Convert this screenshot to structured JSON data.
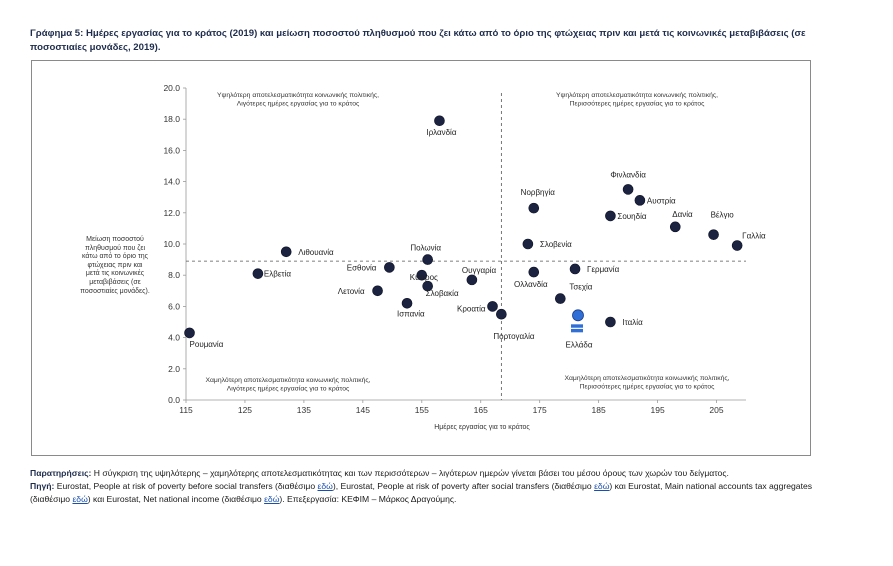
{
  "title": "Γράφημα 5: Ημέρες εργασίας για το κράτος (2019) και μείωση ποσοστού πληθυσμού που ζει κάτω από το όριο της φτώχειας πριν και μετά τις κοινωνικές μεταβιβάσεις (σε ποσοστιαίες μονάδες, 2019).",
  "chart_data": {
    "type": "scatter",
    "xlabel": "Ημέρες εργασίας για το κράτος",
    "ylabel": "Μείωση ποσοστού πληθυσμού που ζει κάτω από το όριο της φτώχειας πριν και μετά τις κοινωνικές μεταβιβάσεις (σε ποσοστιαίες μονάδες)",
    "xlim": [
      115,
      210
    ],
    "ylim": [
      0,
      20
    ],
    "x_ticks": [
      "115",
      "125",
      "135",
      "145",
      "155",
      "165",
      "175",
      "185",
      "195",
      "205"
    ],
    "y_ticks": [
      "0.0",
      "2.0",
      "4.0",
      "6.0",
      "8.0",
      "10.0",
      "12.0",
      "14.0",
      "16.0",
      "18.0",
      "20.0"
    ],
    "reference_lines": {
      "x_mean": 168.5,
      "y_mean": 8.9
    },
    "marker_color": "#1c2340",
    "highlight_color": "#2f6fd6",
    "points": [
      {
        "label": "Ρουμανία",
        "x": 115.6,
        "y": 4.3
      },
      {
        "label": "Ελβετία",
        "x": 127.2,
        "y": 8.1
      },
      {
        "label": "Λιθουανία",
        "x": 132.0,
        "y": 9.5
      },
      {
        "label": "Ιρλανδία",
        "x": 158.0,
        "y": 17.9
      },
      {
        "label": "Εσθονία",
        "x": 149.5,
        "y": 8.5
      },
      {
        "label": "Λετονία",
        "x": 147.5,
        "y": 7.0
      },
      {
        "label": "Πολωνία",
        "x": 156.0,
        "y": 9.0
      },
      {
        "label": "Κύπρος",
        "x": 155.0,
        "y": 8.0
      },
      {
        "label": "Σλοβακία",
        "x": 156.0,
        "y": 7.3
      },
      {
        "label": "Ισπανία",
        "x": 152.5,
        "y": 6.2
      },
      {
        "label": "Ουγγαρία",
        "x": 163.5,
        "y": 7.7
      },
      {
        "label": "Κροατία",
        "x": 167.0,
        "y": 6.0
      },
      {
        "label": "Πορτογαλία",
        "x": 168.5,
        "y": 5.5
      },
      {
        "label": "Νορβηγία",
        "x": 174.0,
        "y": 12.3
      },
      {
        "label": "Σλοβενία",
        "x": 173.0,
        "y": 10.0
      },
      {
        "label": "Ολλανδία",
        "x": 174.0,
        "y": 8.2
      },
      {
        "label": "Γερμανία",
        "x": 181.0,
        "y": 8.4
      },
      {
        "label": "Τσεχία",
        "x": 178.5,
        "y": 6.5
      },
      {
        "label": "Ιταλία",
        "x": 187.0,
        "y": 5.0
      },
      {
        "label": "Ελλάδα",
        "x": 181.5,
        "y": 5.3
      },
      {
        "label": "Φινλανδία",
        "x": 190.0,
        "y": 13.5
      },
      {
        "label": "Αυστρία",
        "x": 192.0,
        "y": 12.8
      },
      {
        "label": "Σουηδία",
        "x": 187.0,
        "y": 11.8
      },
      {
        "label": "Δανία",
        "x": 198.0,
        "y": 11.1
      },
      {
        "label": "Βέλγιο",
        "x": 204.5,
        "y": 10.6
      },
      {
        "label": "Γαλλία",
        "x": 208.5,
        "y": 9.9
      }
    ],
    "quadrant_labels": [
      {
        "position": "top-left",
        "line1": "Υψηλότερη αποτελεσματικότητα κοινωνικής πολιτικής,",
        "line2": "Λιγότερες ημέρες εργασίας για το κράτος"
      },
      {
        "position": "top-right",
        "line1": "Υψηλότερη αποτελεσματικότητα κοινωνικής πολιτικής,",
        "line2": "Περισσότερες ημέρες εργασίας για το κράτος"
      },
      {
        "position": "bottom-left",
        "line1": "Χαμηλότερη αποτελεσματικότητα κοινωνικής πολιτικής,",
        "line2": "Λιγότερες ημέρες εργασίας για το κράτος"
      },
      {
        "position": "bottom-right",
        "line1": "Χαμηλότερη αποτελεσματικότητα κοινωνικής πολιτικής,",
        "line2": "Περισσότερες ημέρες εργασίας για το κράτος"
      }
    ]
  },
  "ylabel_display": "Μείωση ποσοστού πληθυσμού που ζει κάτω από το όριο της φτώχειας πριν και μετά τις κοινωνικές μεταβιβάσεις (σε ποσοστιαίες μονάδες).",
  "notes": {
    "remarks_label": "Παρατηρήσεις:",
    "remarks_text": " Η σύγκριση της υψηλότερης – χαμηλότερης αποτελεσματικότητας και των περισσότερων – λιγότερων ημερών γίνεται βάσει του μέσου όρους των χωρών του δείγματος.",
    "source_label": "Πηγή:",
    "source_part1": " Eurostat, People at risk of poverty before social transfers (διαθέσιμο ",
    "link_text": "εδώ",
    "source_part2": "), Eurostat, People at risk of poverty after social transfers (διαθέσιμο ",
    "source_part3": ") και Eurostat, Main national accounts tax aggregates (διαθέσιμο ",
    "source_part4": ") και Eurostat, Net national income (διαθέσιμο ",
    "source_part5": "). Επεξεργασία: ΚΕΦΙΜ – Μάρκος Δραγούμης."
  }
}
